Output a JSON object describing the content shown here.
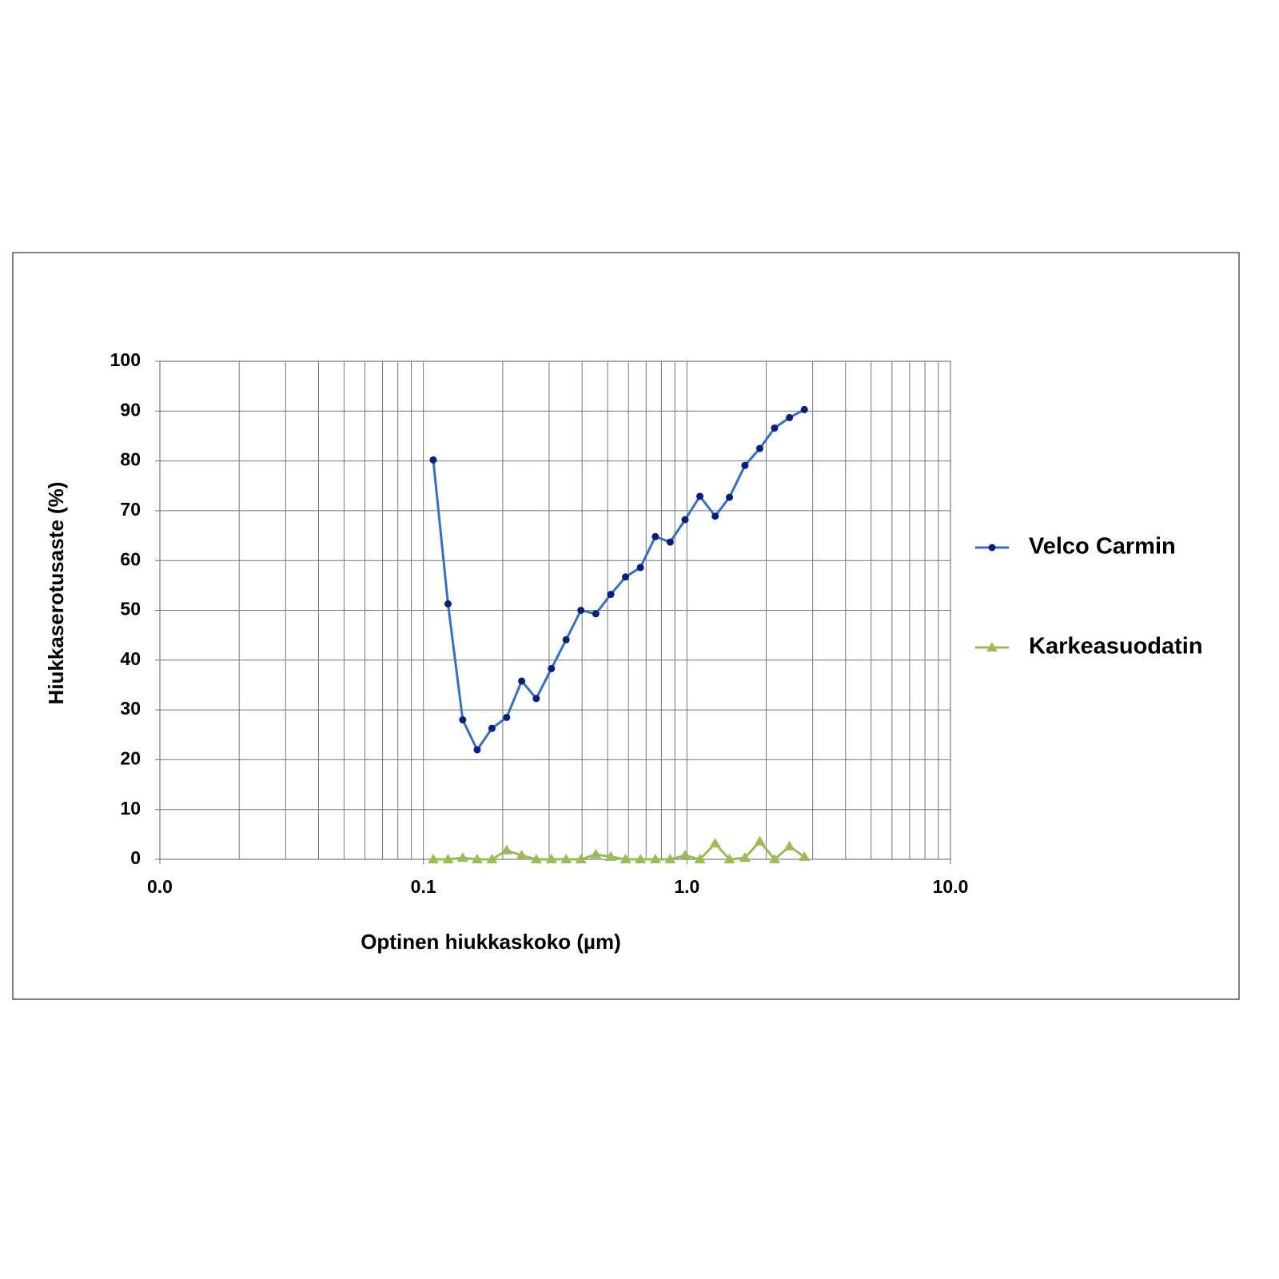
{
  "chart_data": {
    "type": "line",
    "x_label": "Optinen hiukkaskoko (µm)",
    "y_label": "Hiukkaserotusaste (%)",
    "x_scale": "log",
    "xlim": [
      0.01,
      10
    ],
    "xticks": [
      {
        "value": 0.01,
        "label": "0.0"
      },
      0.1,
      {
        "value": 1,
        "label": "1.0"
      },
      {
        "value": 10,
        "label": "10.0"
      }
    ],
    "ylim": [
      0,
      100
    ],
    "yticks": [
      0,
      10,
      20,
      30,
      40,
      50,
      60,
      70,
      80,
      90,
      100
    ],
    "grid": true,
    "legend": "right",
    "x": [
      0.109,
      0.124,
      0.141,
      0.16,
      0.182,
      0.207,
      0.236,
      0.268,
      0.306,
      0.348,
      0.396,
      0.451,
      0.514,
      0.585,
      0.666,
      0.759,
      0.864,
      0.984,
      1.12,
      1.28,
      1.45,
      1.66,
      1.89,
      2.15,
      2.45,
      2.79
    ],
    "series": [
      {
        "name": "Velco Carmin",
        "color": "#3a6fc0",
        "marker_color": "#0a1f7a",
        "marker": "circle",
        "values": [
          80.2,
          51.3,
          28,
          22,
          26.3,
          28.5,
          35.8,
          32.3,
          38.3,
          44.1,
          50,
          49.3,
          53.2,
          56.7,
          58.6,
          64.8,
          63.7,
          68.2,
          72.9,
          68.9,
          72.7,
          79.1,
          82.5,
          86.6,
          88.7,
          90.3
        ]
      },
      {
        "name": "Karkeasuodatin",
        "color": "#9bbb59",
        "marker_color": "#9bbb59",
        "marker": "triangle",
        "values": [
          0,
          0,
          0.3,
          0,
          0,
          1.8,
          0.8,
          0,
          0,
          0,
          0,
          1,
          0.5,
          0,
          0,
          0,
          0,
          0.8,
          0,
          3.2,
          0,
          0.3,
          3.6,
          0,
          2.6,
          0.5
        ]
      }
    ]
  }
}
